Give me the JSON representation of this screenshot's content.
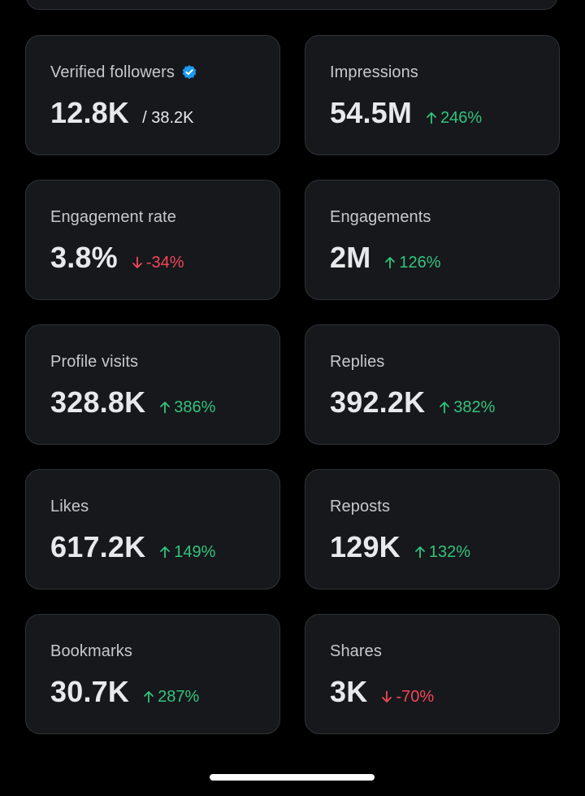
{
  "colors": {
    "background": "#000000",
    "card_background": "#16181c",
    "card_border": "#2f3336",
    "label": "#c5c9cd",
    "value": "#e7e9ea",
    "trend_up": "#33c37d",
    "trend_down": "#f4465a",
    "verified_badge": "#1d9bf0"
  },
  "metrics": [
    {
      "title": "Verified followers",
      "value": "12.8K",
      "sub": "/ 38.2K",
      "verified_icon": "verified-badge-icon"
    },
    {
      "title": "Impressions",
      "value": "54.5M",
      "trend": "up",
      "change": "246%",
      "icon": "arrow-up-icon"
    },
    {
      "title": "Engagement rate",
      "value": "3.8%",
      "trend": "down",
      "change": "-34%",
      "icon": "arrow-down-icon"
    },
    {
      "title": "Engagements",
      "value": "2M",
      "trend": "up",
      "change": "126%",
      "icon": "arrow-up-icon"
    },
    {
      "title": "Profile visits",
      "value": "328.8K",
      "trend": "up",
      "change": "386%",
      "icon": "arrow-up-icon"
    },
    {
      "title": "Replies",
      "value": "392.2K",
      "trend": "up",
      "change": "382%",
      "icon": "arrow-up-icon"
    },
    {
      "title": "Likes",
      "value": "617.2K",
      "trend": "up",
      "change": "149%",
      "icon": "arrow-up-icon"
    },
    {
      "title": "Reposts",
      "value": "129K",
      "trend": "up",
      "change": "132%",
      "icon": "arrow-up-icon"
    },
    {
      "title": "Bookmarks",
      "value": "30.7K",
      "trend": "up",
      "change": "287%",
      "icon": "arrow-up-icon"
    },
    {
      "title": "Shares",
      "value": "3K",
      "trend": "down",
      "change": "-70%",
      "icon": "arrow-down-icon"
    }
  ]
}
